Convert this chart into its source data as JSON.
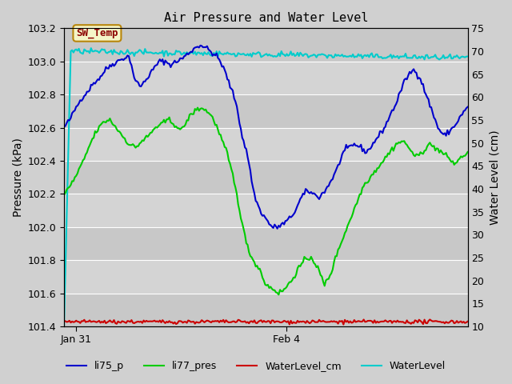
{
  "title": "Air Pressure and Water Level",
  "ylabel_left": "Pressure (kPa)",
  "ylabel_right": "Water Level (cm)",
  "ylim_left": [
    101.4,
    103.2
  ],
  "ylim_right": [
    10,
    75
  ],
  "yticks_left": [
    101.4,
    101.6,
    101.8,
    102.0,
    102.2,
    102.4,
    102.6,
    102.8,
    103.0,
    103.2
  ],
  "yticks_right": [
    10,
    15,
    20,
    25,
    30,
    35,
    40,
    45,
    50,
    55,
    60,
    65,
    70,
    75
  ],
  "xtick_labels": [
    "Jan 31",
    "Feb 4"
  ],
  "xtick_positions": [
    0.03,
    0.55
  ],
  "annotation_text": "SW_Temp",
  "annotation_box_color": "#f5f5c8",
  "annotation_text_color": "#8b0000",
  "annotation_edge_color": "#b8860b",
  "legend_labels": [
    "li75_p",
    "li77_pres",
    "WaterLevel_cm",
    "WaterLevel"
  ],
  "legend_colors": [
    "#0000cc",
    "#00cc00",
    "#cc0000",
    "#00cccc"
  ],
  "band_colors": [
    "#c8c8c8",
    "#d4d4d4"
  ],
  "grid_color": "#ffffff",
  "bg_color": "#d0d0d0",
  "n_points": 300
}
